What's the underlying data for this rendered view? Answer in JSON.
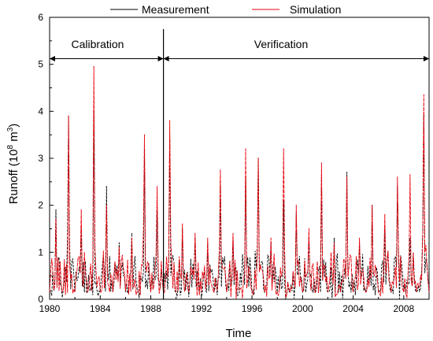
{
  "chart_data": {
    "type": "line",
    "title": "",
    "xlabel": "Time",
    "ylabel_main": "Runoff (10",
    "ylabel_sup1": "8",
    "ylabel_mid": " m",
    "ylabel_sup2": "3",
    "ylabel_end": ")",
    "xlim": [
      1980,
      2010
    ],
    "ylim": [
      0,
      6
    ],
    "xticks": [
      1980,
      1984,
      1988,
      1992,
      1996,
      2000,
      2004,
      2008
    ],
    "yticks": [
      0,
      1,
      2,
      3,
      4,
      5,
      6
    ],
    "legend_position": "top",
    "series": [
      {
        "name": "Measurement",
        "color": "#000000",
        "peaks": [
          [
            1980.5,
            1.9
          ],
          [
            1981.5,
            3.9
          ],
          [
            1982.5,
            1.5
          ],
          [
            1983.5,
            4.0
          ],
          [
            1984.5,
            2.4
          ],
          [
            1985.5,
            1.2
          ],
          [
            1986.5,
            1.4
          ],
          [
            1987.5,
            3.2
          ],
          [
            1988.5,
            1.9
          ],
          [
            1989.5,
            3.4
          ],
          [
            1990.5,
            1.5
          ],
          [
            1991.5,
            1.3
          ],
          [
            1992.5,
            1.2
          ],
          [
            1993.5,
            2.5
          ],
          [
            1994.5,
            1.3
          ],
          [
            1995.5,
            2.6
          ],
          [
            1996.5,
            3.0
          ],
          [
            1997.5,
            1.2
          ],
          [
            1998.5,
            2.1
          ],
          [
            1999.5,
            1.8
          ],
          [
            2000.5,
            1.3
          ],
          [
            2001.5,
            2.6
          ],
          [
            2002.5,
            1.3
          ],
          [
            2003.5,
            2.7
          ],
          [
            2004.5,
            1.2
          ],
          [
            2005.5,
            2.0
          ],
          [
            2006.5,
            1.5
          ],
          [
            2007.5,
            2.4
          ],
          [
            2008.5,
            1.3
          ],
          [
            2009.6,
            3.9
          ]
        ]
      },
      {
        "name": "Simulation",
        "color": "#e8000b",
        "peaks": [
          [
            1980.5,
            1.7
          ],
          [
            1981.5,
            3.9
          ],
          [
            1982.5,
            1.9
          ],
          [
            1983.5,
            4.95
          ],
          [
            1984.5,
            2.0
          ],
          [
            1985.5,
            1.1
          ],
          [
            1986.5,
            1.3
          ],
          [
            1987.5,
            3.5
          ],
          [
            1988.5,
            2.4
          ],
          [
            1989.5,
            3.8
          ],
          [
            1990.5,
            1.6
          ],
          [
            1991.5,
            1.4
          ],
          [
            1992.5,
            1.3
          ],
          [
            1993.5,
            2.75
          ],
          [
            1994.5,
            1.4
          ],
          [
            1995.5,
            3.2
          ],
          [
            1996.5,
            3.0
          ],
          [
            1997.5,
            1.3
          ],
          [
            1998.5,
            3.2
          ],
          [
            1999.5,
            2.0
          ],
          [
            2000.5,
            1.5
          ],
          [
            2001.5,
            2.9
          ],
          [
            2002.5,
            1.2
          ],
          [
            2003.5,
            2.6
          ],
          [
            2004.5,
            1.3
          ],
          [
            2005.5,
            2.0
          ],
          [
            2006.5,
            1.8
          ],
          [
            2007.5,
            2.6
          ],
          [
            2008.5,
            2.65
          ],
          [
            2009.6,
            4.35
          ]
        ]
      }
    ],
    "divider_x": 1989.0,
    "annotations": [
      {
        "text": "Calibration",
        "x": 1984.5,
        "y": 5.5,
        "arrow_from": 1980,
        "arrow_to": 1989,
        "arrow_y": 5.12
      },
      {
        "text": "Verification",
        "x": 1999.3,
        "y": 5.5,
        "arrow_from": 1989,
        "arrow_to": 2010,
        "arrow_y": 5.12
      }
    ]
  }
}
